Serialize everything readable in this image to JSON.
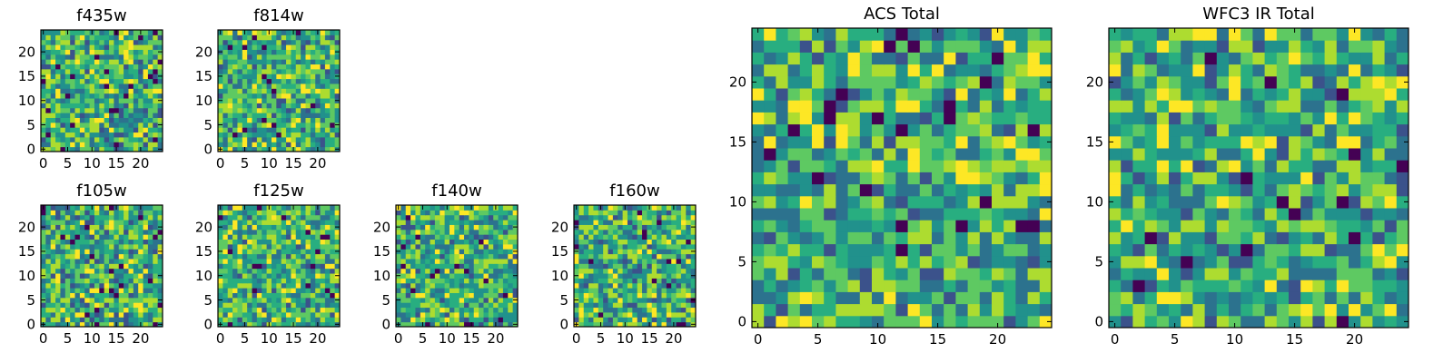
{
  "chart_data": [
    {
      "type": "heatmap",
      "title": "f435w",
      "xlim": [
        -0.5,
        24.5
      ],
      "ylim": [
        -0.5,
        24.5
      ],
      "xticks": [
        0,
        5,
        10,
        15,
        20
      ],
      "yticks": [
        0,
        5,
        10,
        15,
        20
      ],
      "colormap": "viridis",
      "grid": false
    },
    {
      "type": "heatmap",
      "title": "f814w",
      "xlim": [
        -0.5,
        24.5
      ],
      "ylim": [
        -0.5,
        24.5
      ],
      "xticks": [
        0,
        5,
        10,
        15,
        20
      ],
      "yticks": [
        0,
        5,
        10,
        15,
        20
      ],
      "colormap": "viridis",
      "grid": false
    },
    {
      "type": "heatmap",
      "title": "f105w",
      "xlim": [
        -0.5,
        24.5
      ],
      "ylim": [
        -0.5,
        24.5
      ],
      "xticks": [
        0,
        5,
        10,
        15,
        20
      ],
      "yticks": [
        0,
        5,
        10,
        15,
        20
      ],
      "colormap": "viridis",
      "grid": false
    },
    {
      "type": "heatmap",
      "title": "f125w",
      "xlim": [
        -0.5,
        24.5
      ],
      "ylim": [
        -0.5,
        24.5
      ],
      "xticks": [
        0,
        5,
        10,
        15,
        20
      ],
      "yticks": [
        0,
        5,
        10,
        15,
        20
      ],
      "colormap": "viridis",
      "grid": false
    },
    {
      "type": "heatmap",
      "title": "f140w",
      "xlim": [
        -0.5,
        24.5
      ],
      "ylim": [
        -0.5,
        24.5
      ],
      "xticks": [
        0,
        5,
        10,
        15,
        20
      ],
      "yticks": [
        0,
        5,
        10,
        15,
        20
      ],
      "colormap": "viridis",
      "grid": false
    },
    {
      "type": "heatmap",
      "title": "f160w",
      "xlim": [
        -0.5,
        24.5
      ],
      "ylim": [
        -0.5,
        24.5
      ],
      "xticks": [
        0,
        5,
        10,
        15,
        20
      ],
      "yticks": [
        0,
        5,
        10,
        15,
        20
      ],
      "colormap": "viridis",
      "grid": false
    },
    {
      "type": "heatmap",
      "title": "ACS Total",
      "xlim": [
        -0.5,
        24.5
      ],
      "ylim": [
        -0.5,
        24.5
      ],
      "xticks": [
        0,
        5,
        10,
        15,
        20
      ],
      "yticks": [
        0,
        5,
        10,
        15,
        20
      ],
      "colormap": "viridis",
      "grid": false
    },
    {
      "type": "heatmap",
      "title": "WFC3 IR Total",
      "xlim": [
        -0.5,
        24.5
      ],
      "ylim": [
        -0.5,
        24.5
      ],
      "xticks": [
        0,
        5,
        10,
        15,
        20
      ],
      "yticks": [
        0,
        5,
        10,
        15,
        20
      ],
      "colormap": "viridis",
      "grid": false
    }
  ]
}
